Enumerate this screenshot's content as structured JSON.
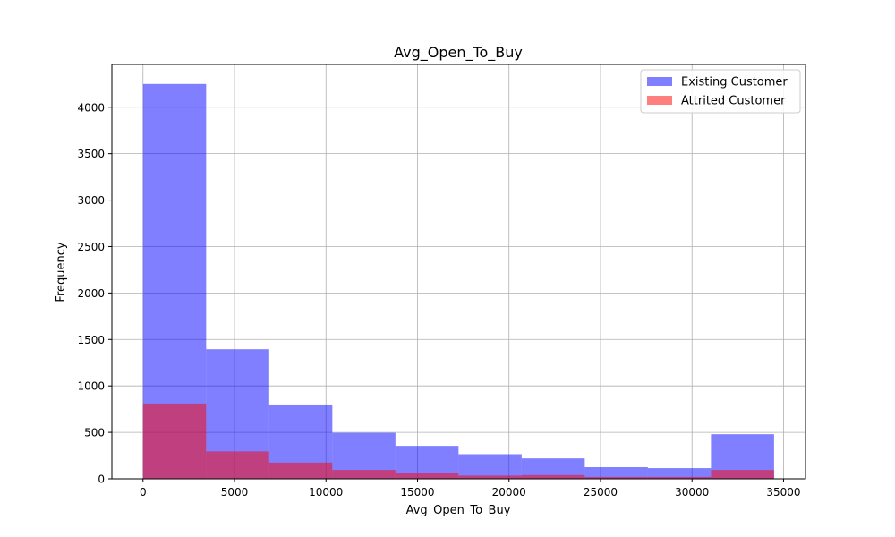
{
  "chart_data": {
    "type": "histogram",
    "title": "Avg_Open_To_Buy",
    "xlabel": "Avg_Open_To_Buy",
    "ylabel": "Frequency",
    "xlim": [
      -1700,
      36200
    ],
    "ylim": [
      0,
      4460
    ],
    "xticks": [
      0,
      5000,
      10000,
      15000,
      20000,
      25000,
      30000,
      35000
    ],
    "yticks": [
      0,
      500,
      1000,
      1500,
      2000,
      2500,
      3000,
      3500,
      4000
    ],
    "grid": true,
    "legend_position": "top-right",
    "bin_edges": [
      3,
      3451,
      6899,
      10347,
      13795,
      17243,
      20691,
      24139,
      27587,
      31035,
      34483
    ],
    "series": [
      {
        "name": "Existing Customer",
        "color": "#0000ff",
        "alpha": 0.5,
        "values": [
          4250,
          1395,
          800,
          495,
          355,
          265,
          220,
          125,
          115,
          480
        ]
      },
      {
        "name": "Attrited Customer",
        "color": "#ff0000",
        "alpha": 0.5,
        "values": [
          810,
          295,
          175,
          95,
          60,
          35,
          40,
          20,
          20,
          95
        ]
      }
    ]
  }
}
